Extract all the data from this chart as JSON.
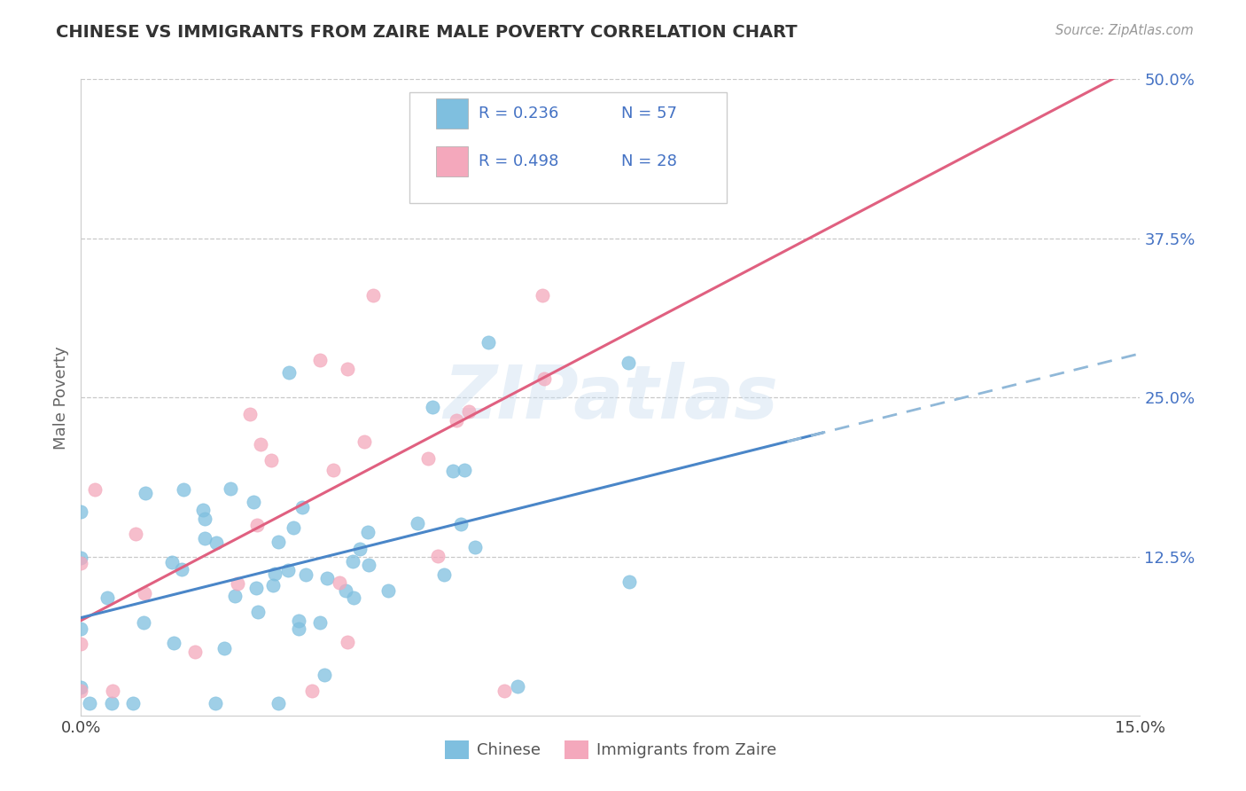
{
  "title": "CHINESE VS IMMIGRANTS FROM ZAIRE MALE POVERTY CORRELATION CHART",
  "source_text": "Source: ZipAtlas.com",
  "ylabel": "Male Poverty",
  "xlim": [
    0.0,
    0.15
  ],
  "ylim": [
    0.0,
    0.5
  ],
  "chinese_color": "#7fbfdf",
  "zaire_color": "#f4a8bc",
  "chinese_line_color": "#4a86c8",
  "zaire_line_color": "#e06080",
  "dashed_line_color": "#90b8d8",
  "legend_label1": "Chinese",
  "legend_label2": "Immigrants from Zaire",
  "watermark": "ZIPatlas",
  "background_color": "#ffffff",
  "grid_color": "#c8c8c8",
  "title_color": "#333333",
  "source_color": "#999999",
  "ytick_color": "#4472c4",
  "xtick_color": "#444444"
}
